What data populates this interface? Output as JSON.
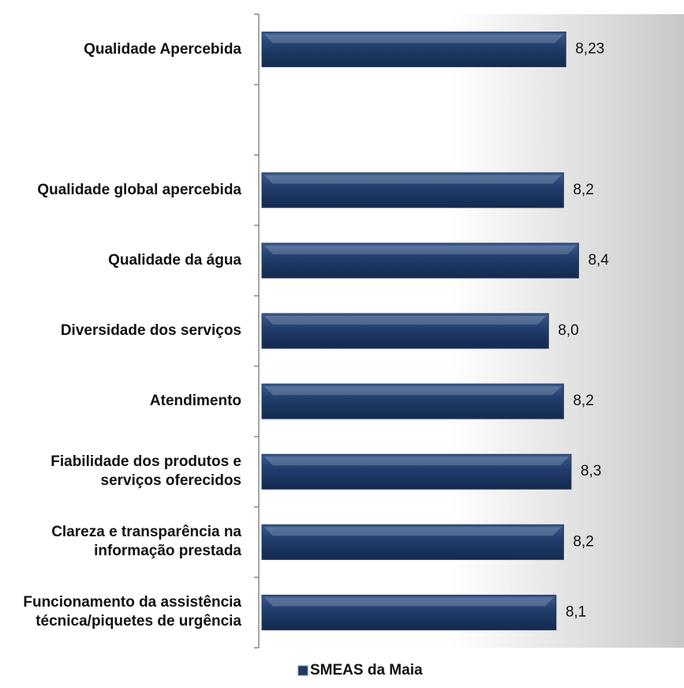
{
  "chart_data": {
    "type": "bar",
    "orientation": "horizontal",
    "categories": [
      "Qualidade Apercebida",
      null,
      "Qualidade global apercebida",
      "Qualidade da água",
      "Diversidade dos serviços",
      "Atendimento",
      "Fiabilidade dos produtos e serviços oferecidos",
      "Clareza e transparência na informação prestada",
      "Funcionamento da assistência técnica/piquetes de urgência"
    ],
    "series": [
      {
        "name": "SMEAS da Maia",
        "color": "#1f3864",
        "values": [
          8.23,
          null,
          8.2,
          8.4,
          8.0,
          8.2,
          8.3,
          8.2,
          8.1
        ],
        "value_labels": [
          "8,23",
          null,
          "8,2",
          "8,4",
          "8,0",
          "8,2",
          "8,3",
          "8,2",
          "8,1"
        ]
      }
    ],
    "xlim": [
      4.15,
      9.8
    ],
    "legend": "bottom"
  }
}
